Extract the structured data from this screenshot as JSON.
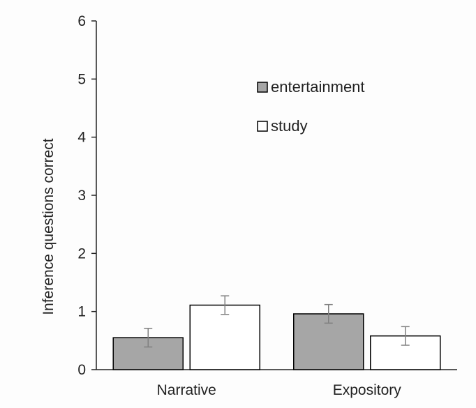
{
  "chart_data": {
    "type": "bar",
    "title": "",
    "xlabel": "",
    "ylabel": "Inference questions correct",
    "categories": [
      "Narrative",
      "Expository"
    ],
    "series": [
      {
        "name": "entertainment",
        "values": [
          0.55,
          0.96
        ],
        "errors": [
          0.16,
          0.16
        ],
        "color": "#a6a6a6"
      },
      {
        "name": "study",
        "values": [
          1.11,
          0.58
        ],
        "errors": [
          0.16,
          0.16
        ],
        "color": "#ffffff"
      }
    ],
    "ylim": [
      0,
      6
    ],
    "yticks": [
      "0",
      "1",
      "2",
      "3",
      "4",
      "5",
      "6"
    ],
    "grid": false,
    "legend_position": "upper-center",
    "error_bar_color": "#808080",
    "axis_color": "#222222",
    "bar_border_color": "#000000"
  }
}
